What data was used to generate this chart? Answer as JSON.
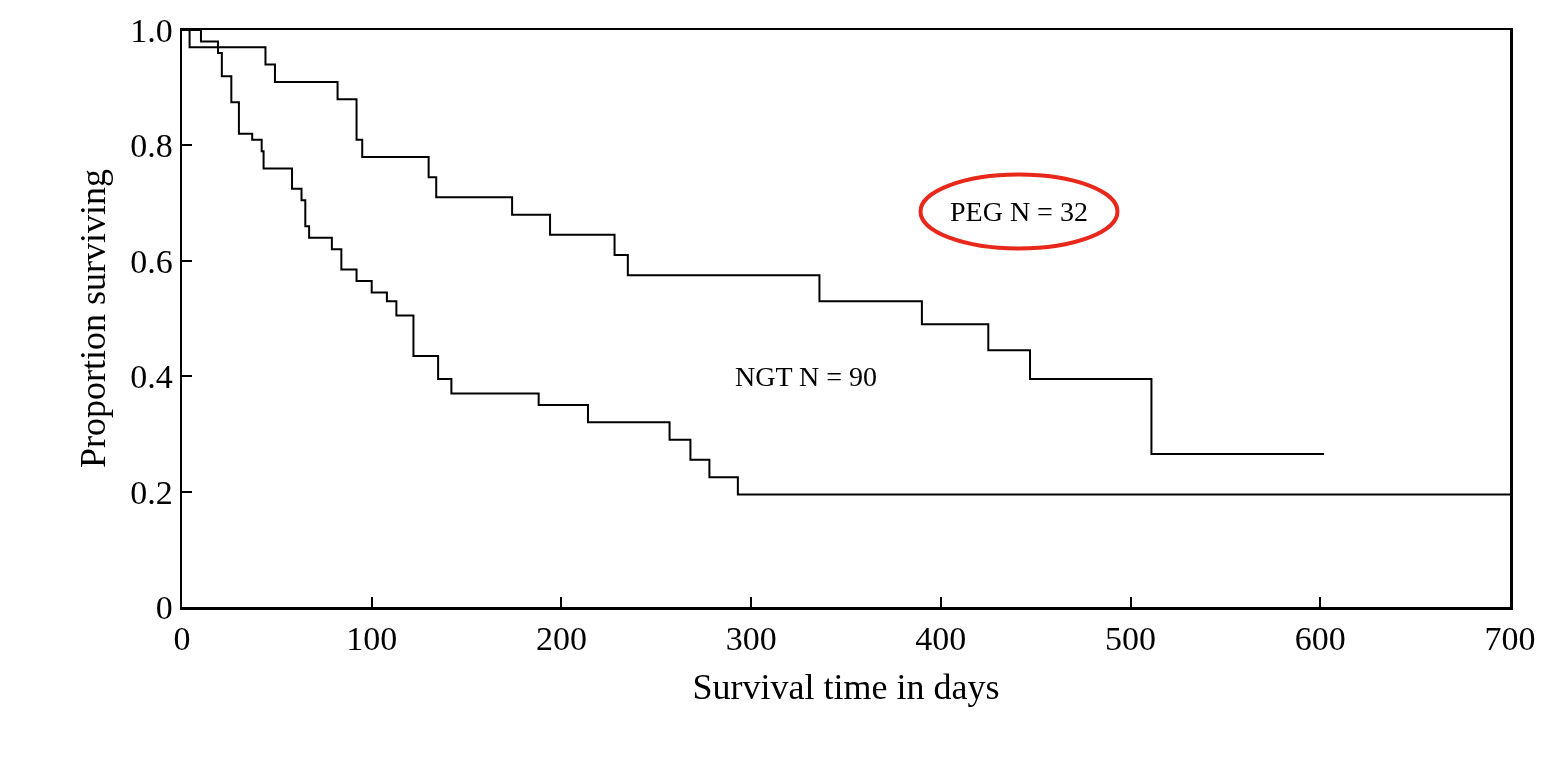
{
  "chart_data": {
    "type": "step",
    "xlabel": "Survival time in days",
    "ylabel": "Proportion surviving",
    "series": [
      {
        "name": "PEG N = 32",
        "color": "#000000",
        "x": [
          0,
          4,
          44,
          49,
          82,
          92,
          95,
          130,
          134,
          174,
          194,
          228,
          235,
          336,
          390,
          425,
          447,
          511,
          602
        ],
        "values": [
          1.0,
          0.97,
          0.94,
          0.91,
          0.88,
          0.81,
          0.78,
          0.745,
          0.71,
          0.68,
          0.645,
          0.61,
          0.575,
          0.53,
          0.49,
          0.445,
          0.395,
          0.265,
          0.265
        ]
      },
      {
        "name": "NGT N = 90",
        "color": "#000000",
        "x": [
          0,
          10,
          19,
          21,
          26,
          30,
          37,
          42,
          43,
          58,
          63,
          65,
          67,
          79,
          84,
          92,
          100,
          108,
          113,
          122,
          135,
          142,
          188,
          214,
          257,
          268,
          278,
          293,
          700
        ],
        "values": [
          1.0,
          0.98,
          0.96,
          0.92,
          0.875,
          0.82,
          0.81,
          0.79,
          0.76,
          0.725,
          0.705,
          0.66,
          0.64,
          0.62,
          0.585,
          0.565,
          0.545,
          0.53,
          0.505,
          0.435,
          0.395,
          0.37,
          0.35,
          0.32,
          0.29,
          0.255,
          0.225,
          0.195,
          0.195
        ]
      }
    ],
    "xlim": [
      0,
      700
    ],
    "xticks": [
      0,
      100,
      200,
      300,
      400,
      500,
      600,
      700
    ],
    "ylim": [
      0,
      1
    ],
    "yticks": [
      0,
      0.2,
      0.4,
      0.6,
      0.8,
      {
        "value": 1,
        "label": "1.0"
      }
    ],
    "grid": false,
    "legend": false,
    "marker": "none",
    "line_style": "solid"
  }
}
